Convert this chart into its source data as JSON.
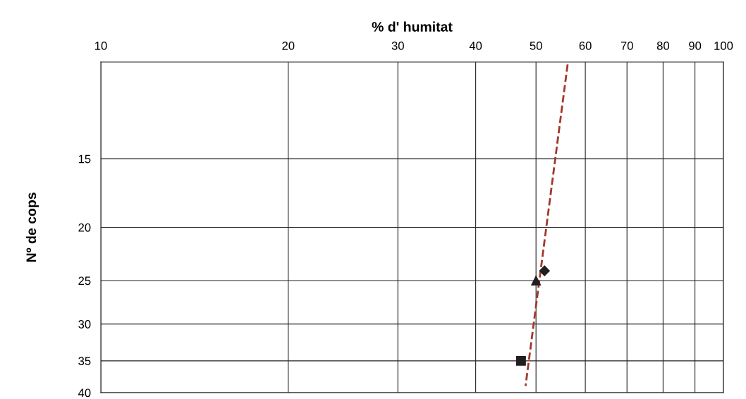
{
  "chart_data": {
    "type": "scatter",
    "xlabel": "% d' humitat",
    "ylabel": "Nº de cops",
    "log": "xy",
    "xlim": [
      10,
      100
    ],
    "xticks": [
      10,
      20,
      30,
      40,
      50,
      60,
      70,
      80,
      90,
      100
    ],
    "ylim": [
      40,
      10
    ],
    "yticks": [
      15,
      20,
      25,
      30,
      35,
      40
    ],
    "grid": true,
    "series": [
      {
        "x": [
          51.6
        ],
        "values": [
          24
        ],
        "color": "#231f20",
        "marker": "diamond"
      },
      {
        "x": [
          50.0
        ],
        "values": [
          25
        ],
        "color": "#231f20",
        "marker": "triangle"
      },
      {
        "x": [
          47.3
        ],
        "values": [
          35
        ],
        "color": "#231f20",
        "marker": "square"
      },
      {
        "type": "line",
        "x": [
          56.2,
          48.1
        ],
        "values": [
          10.1,
          38.9
        ],
        "color": "#a0382a",
        "line_style": "dashed",
        "marker": "none"
      }
    ]
  }
}
